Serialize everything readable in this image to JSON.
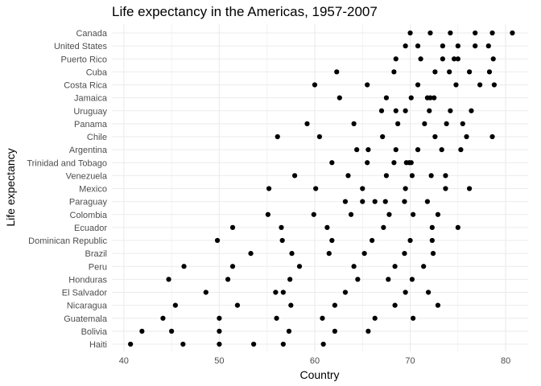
{
  "chart_data": {
    "type": "scatter",
    "title": "Life expectancy in the Americas, 1957-2007",
    "xlabel": "Country",
    "ylabel": "Life expectancy",
    "xlim": [
      38.75,
      82.35
    ],
    "xticks": [
      40,
      50,
      60,
      70,
      80
    ],
    "grid": true,
    "legend": "none",
    "point_color": "#000000",
    "grid_color": "#ebebeb",
    "categories": [
      "Canada",
      "United States",
      "Puerto Rico",
      "Cuba",
      "Costa Rica",
      "Jamaica",
      "Uruguay",
      "Panama",
      "Chile",
      "Argentina",
      "Trinidad and Tobago",
      "Venezuela",
      "Mexico",
      "Paraguay",
      "Colombia",
      "Ecuador",
      "Dominican Republic",
      "Brazil",
      "Peru",
      "Honduras",
      "El Salvador",
      "Nicaragua",
      "Guatemala",
      "Bolivia",
      "Haiti"
    ],
    "values": {
      "Canada": [
        70.0,
        72.1,
        74.2,
        76.8,
        78.6,
        80.7
      ],
      "United States": [
        69.5,
        70.8,
        73.4,
        75.0,
        76.8,
        78.2
      ],
      "Puerto Rico": [
        68.5,
        71.1,
        73.4,
        74.6,
        75.0,
        78.7
      ],
      "Cuba": [
        62.3,
        68.3,
        72.6,
        74.1,
        76.2,
        78.3
      ],
      "Costa Rica": [
        60.0,
        65.5,
        70.8,
        74.8,
        77.3,
        78.8
      ],
      "Jamaica": [
        62.6,
        67.5,
        70.1,
        71.8,
        72.1,
        72.5
      ],
      "Uruguay": [
        67.0,
        68.5,
        69.5,
        72.0,
        74.2,
        76.4
      ],
      "Panama": [
        59.2,
        64.1,
        68.7,
        71.5,
        73.8,
        75.5
      ],
      "Chile": [
        56.1,
        60.5,
        67.1,
        72.6,
        75.9,
        78.6
      ],
      "Argentina": [
        64.4,
        65.6,
        68.5,
        70.8,
        73.3,
        75.3
      ],
      "Trinidad and Tobago": [
        61.8,
        65.5,
        68.3,
        69.6,
        69.9,
        70.1
      ],
      "Venezuela": [
        57.9,
        63.5,
        67.5,
        70.2,
        72.2,
        73.7
      ],
      "Mexico": [
        55.2,
        60.1,
        65.0,
        69.5,
        73.7,
        76.2
      ],
      "Paraguay": [
        63.2,
        65.0,
        66.3,
        67.4,
        69.4,
        71.8
      ],
      "Colombia": [
        55.1,
        59.9,
        63.8,
        67.8,
        70.3,
        72.9
      ],
      "Ecuador": [
        51.4,
        56.5,
        61.3,
        67.2,
        72.3,
        75.0
      ],
      "Dominican Republic": [
        49.8,
        56.6,
        61.8,
        66.0,
        70.0,
        72.3
      ],
      "Brazil": [
        53.3,
        57.6,
        61.5,
        65.2,
        69.4,
        72.4
      ],
      "Peru": [
        46.3,
        51.4,
        58.4,
        64.1,
        68.4,
        71.4
      ],
      "Honduras": [
        44.7,
        50.9,
        57.4,
        64.5,
        67.7,
        70.2
      ],
      "El Salvador": [
        48.6,
        55.9,
        56.7,
        63.2,
        69.5,
        71.9
      ],
      "Nicaragua": [
        45.4,
        51.9,
        57.5,
        62.1,
        68.4,
        72.9
      ],
      "Guatemala": [
        44.1,
        50.0,
        56.0,
        60.8,
        66.3,
        70.3
      ],
      "Bolivia": [
        41.9,
        45.0,
        50.0,
        57.3,
        62.1,
        65.6
      ],
      "Haiti": [
        40.7,
        46.2,
        50.0,
        53.6,
        56.7,
        60.9
      ]
    }
  }
}
